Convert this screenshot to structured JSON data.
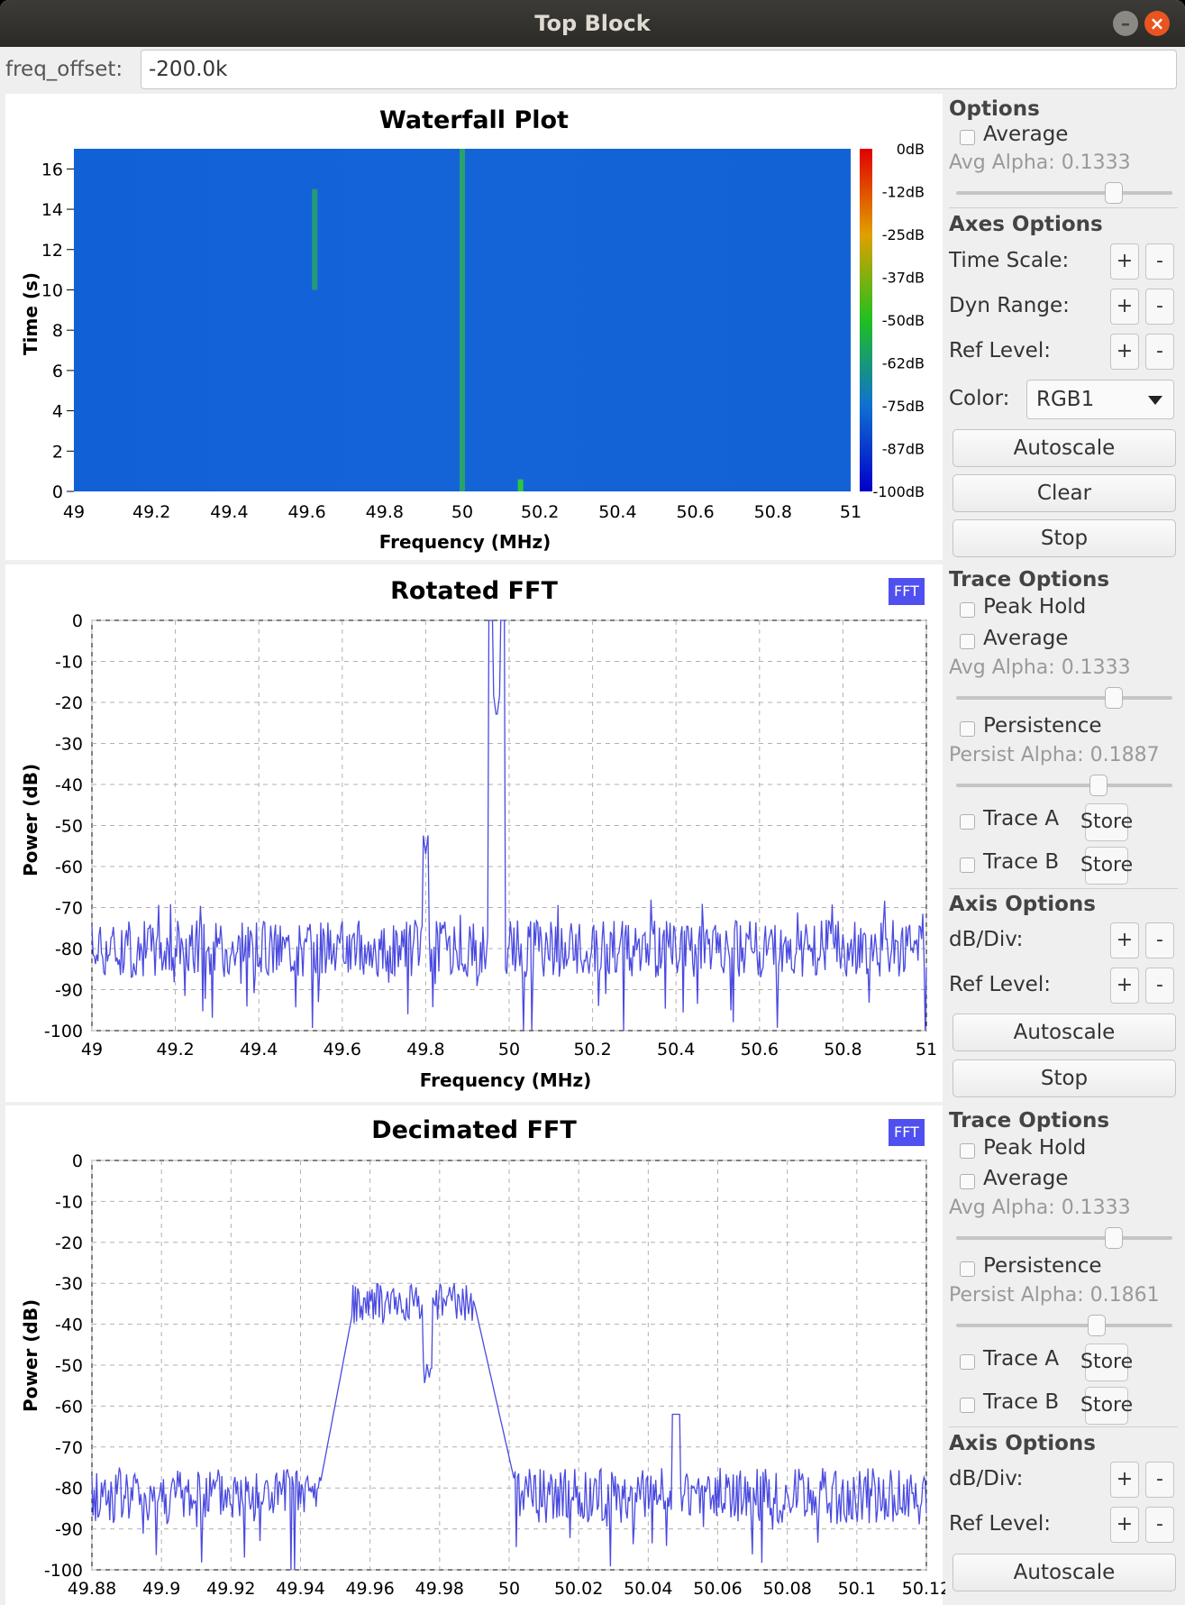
{
  "window": {
    "title": "Top Block",
    "minimize_label": "–",
    "close_label": "×"
  },
  "freq_offset": {
    "label": "freq_offset:",
    "value": "-200.0k"
  },
  "waterfall": {
    "title": "Waterfall Plot",
    "xlabel": "Frequency (MHz)",
    "ylabel": "Time (s)",
    "x_ticks": [
      "49",
      "49.2",
      "49.4",
      "49.6",
      "49.8",
      "50",
      "50.2",
      "50.4",
      "50.6",
      "50.8",
      "51"
    ],
    "y_ticks": [
      "0",
      "2",
      "4",
      "6",
      "8",
      "10",
      "12",
      "14",
      "16"
    ],
    "colorbar_ticks": [
      "0dB",
      "-12dB",
      "-25dB",
      "-37dB",
      "-50dB",
      "-62dB",
      "-75dB",
      "-87dB",
      "-100dB"
    ]
  },
  "waterfall_controls": {
    "options_title": "Options",
    "average_label": "Average",
    "avg_alpha": "Avg Alpha: 0.1333",
    "axes_title": "Axes Options",
    "time_scale": "Time Scale:",
    "dyn_range": "Dyn Range:",
    "ref_level": "Ref Level:",
    "color_label": "Color:",
    "color_value": "RGB1",
    "plus": "+",
    "minus": "-",
    "autoscale": "Autoscale",
    "clear": "Clear",
    "stop": "Stop"
  },
  "rotated_controls": {
    "trace_title": "Trace Options",
    "peak_hold": "Peak Hold",
    "average": "Average",
    "avg_alpha": "Avg Alpha: 0.1333",
    "persistence": "Persistence",
    "persist_alpha": "Persist Alpha: 0.1887",
    "trace_a": "Trace A",
    "trace_b": "Trace B",
    "store": "Store",
    "axis_title": "Axis Options",
    "db_div": "dB/Div:",
    "ref_level": "Ref Level:",
    "plus": "+",
    "minus": "-",
    "autoscale": "Autoscale",
    "stop": "Stop"
  },
  "decimated_controls": {
    "trace_title": "Trace Options",
    "peak_hold": "Peak Hold",
    "average": "Average",
    "avg_alpha": "Avg Alpha: 0.1333",
    "persistence": "Persistence",
    "persist_alpha": "Persist Alpha: 0.1861",
    "trace_a": "Trace A",
    "trace_b": "Trace B",
    "store": "Store",
    "axis_title": "Axis Options",
    "db_div": "dB/Div:",
    "ref_level": "Ref Level:",
    "plus": "+",
    "minus": "-",
    "autoscale": "Autoscale"
  },
  "fft_badge": "FFT",
  "chart_data": [
    {
      "type": "heatmap",
      "title": "Waterfall Plot",
      "xlabel": "Frequency (MHz)",
      "ylabel": "Time (s)",
      "xlim": [
        49,
        51
      ],
      "ylim": [
        0,
        17
      ],
      "colorbar": {
        "min_db": -100,
        "max_db": 0
      },
      "features": [
        {
          "freq_mhz": 50.0,
          "time_range": [
            0,
            17
          ]
        },
        {
          "freq_mhz": 49.62,
          "time_range": [
            10,
            15
          ]
        },
        {
          "freq_mhz": 50.15,
          "time_range": [
            0,
            0.6
          ]
        }
      ]
    },
    {
      "type": "line",
      "title": "Rotated FFT",
      "xlabel": "Frequency (MHz)",
      "ylabel": "Power (dB)",
      "xlim": [
        49,
        51
      ],
      "ylim": [
        -100,
        0
      ],
      "x_ticks": [
        "49",
        "49.2",
        "49.4",
        "49.6",
        "49.8",
        "50",
        "50.2",
        "50.4",
        "50.6",
        "50.8",
        "51"
      ],
      "y_ticks": [
        "0",
        "-10",
        "-20",
        "-30",
        "-40",
        "-50",
        "-60",
        "-70",
        "-80",
        "-90",
        "-100"
      ],
      "noise_floor_db": -80,
      "peaks": [
        {
          "x": 49.97,
          "y": -24
        },
        {
          "x": 49.8,
          "y": -57
        }
      ],
      "series_color": "#4a4ae0"
    },
    {
      "type": "line",
      "title": "Decimated FFT",
      "xlabel": "",
      "ylabel": "Power (dB)",
      "xlim": [
        49.88,
        50.12
      ],
      "ylim": [
        -100,
        0
      ],
      "x_ticks": [
        "49.88",
        "49.9",
        "49.92",
        "49.94",
        "49.96",
        "49.98",
        "50",
        "50.02",
        "50.04",
        "50.06",
        "50.08",
        "50.1",
        "50.12"
      ],
      "y_ticks": [
        "0",
        "-10",
        "-20",
        "-30",
        "-40",
        "-50",
        "-60",
        "-70",
        "-80",
        "-90",
        "-100"
      ],
      "noise_floor_db": -82,
      "band": {
        "from": 49.955,
        "to": 49.99,
        "level_db": -35
      },
      "peaks": [
        {
          "x": 50.048,
          "y": -62
        }
      ],
      "series_color": "#4a4ae0"
    }
  ]
}
